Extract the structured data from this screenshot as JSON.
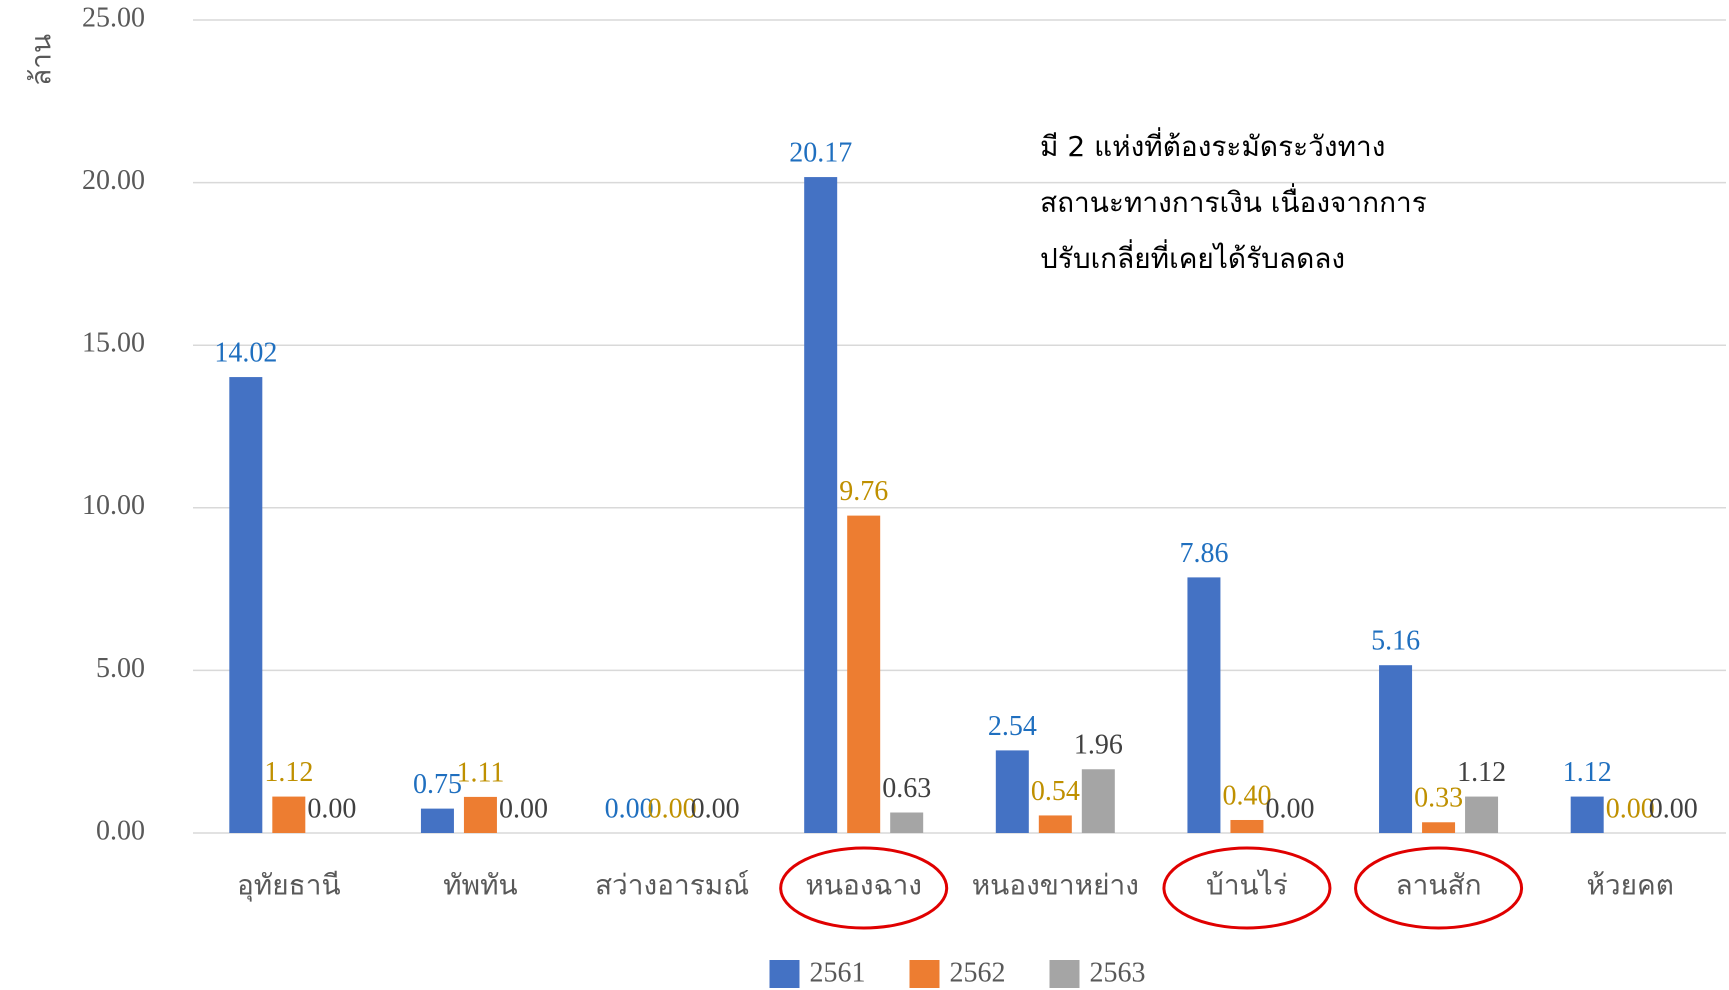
{
  "chart_data": {
    "type": "bar",
    "y_label": "ล้าน",
    "categories": [
      "อุทัยธานี",
      "ทัพทัน",
      "สว่างอารมณ์",
      "หนองฉาง",
      "หนองขาหย่าง",
      "บ้านไร่",
      "ลานสัก",
      "ห้วยคต"
    ],
    "series": [
      {
        "name": "2561",
        "color": "#4472c4",
        "label_color": "#1f6fbf",
        "values": [
          14.02,
          0.75,
          0,
          20.17,
          2.54,
          7.86,
          5.16,
          1.12
        ],
        "value_labels": [
          "14.02",
          "0.75",
          "0.00",
          "20.17",
          "2.54",
          "7.86",
          "5.16",
          "1.12"
        ]
      },
      {
        "name": "2562",
        "color": "#ed7d31",
        "label_color": "#bf9000",
        "values": [
          1.12,
          1.11,
          0,
          9.76,
          0.54,
          0.4,
          0.33,
          0
        ],
        "value_labels": [
          "1.12",
          "1.11",
          "0.00",
          "9.76",
          "0.54",
          "0.40",
          "0.33",
          "0.00"
        ]
      },
      {
        "name": "2563",
        "color": "#a5a5a5",
        "label_color": "#404040",
        "values": [
          0,
          0,
          0,
          0.63,
          1.96,
          0,
          1.12,
          0
        ],
        "value_labels": [
          "0.00",
          "0.00",
          "0.00",
          "0.63",
          "1.96",
          "0.00",
          "1.12",
          "0.00"
        ]
      }
    ],
    "ylim": [
      0,
      25
    ],
    "yticks": [
      {
        "value": 0,
        "label": "0.00"
      },
      {
        "value": 5,
        "label": "5.00"
      },
      {
        "value": 10,
        "label": "10.00"
      },
      {
        "value": 15,
        "label": "15.00"
      },
      {
        "value": 20,
        "label": "20.00"
      },
      {
        "value": 25,
        "label": "25.00"
      }
    ],
    "grid": true,
    "legend": "bottom",
    "highlight": [
      3,
      5,
      6
    ],
    "annotation": [
      "มี 2 แห่งที่ต้องระมัดระวังทาง",
      "สถานะทางการเงิน เนื่องจากการ",
      "ปรับเกลี่ยที่เคยได้รับลดลง"
    ]
  }
}
